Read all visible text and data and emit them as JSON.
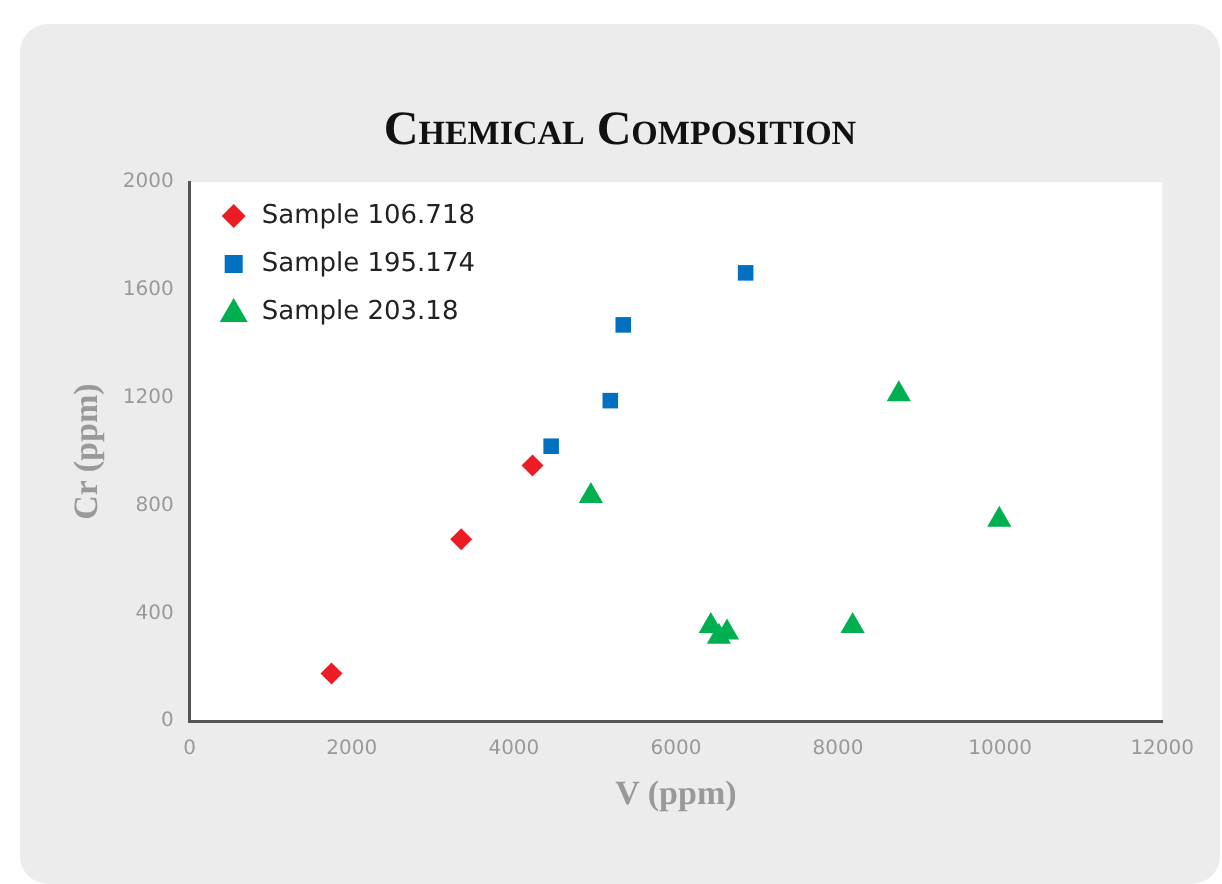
{
  "chart_data": {
    "type": "scatter",
    "title": "Chemical Composition",
    "xlabel": "V (ppm)",
    "ylabel": "Cr (ppm)",
    "xlim": [
      0,
      12000
    ],
    "xticks": [
      0,
      2000,
      4000,
      6000,
      8000,
      10000,
      12000
    ],
    "ylim": [
      0,
      2000
    ],
    "yticks": [
      0,
      400,
      800,
      1200,
      1600,
      2000
    ],
    "grid": false,
    "legend": "top left",
    "series": [
      {
        "name": "Sample 106.718",
        "color": "#ed1c24",
        "marker": "diamond",
        "x": [
          1750,
          3350,
          4230
        ],
        "values": [
          177,
          675,
          948
        ]
      },
      {
        "name": "Sample 195.174",
        "color": "#0070c0",
        "marker": "square",
        "x": [
          4460,
          5190,
          5350,
          6860
        ],
        "values": [
          1020,
          1189,
          1470,
          1663
        ]
      },
      {
        "name": "Sample 203.18",
        "color": "#00b050",
        "marker": "triangle",
        "x": [
          4950,
          6430,
          6530,
          6630,
          8180,
          8750,
          9990
        ],
        "values": [
          835,
          353,
          313,
          329,
          353,
          1213,
          747
        ]
      }
    ]
  }
}
